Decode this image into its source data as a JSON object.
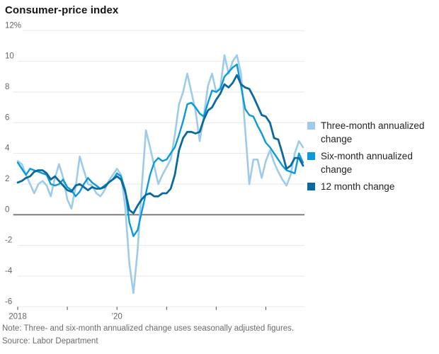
{
  "title": "Consumer-price index",
  "note": "Note: Three- and six-month annualized change uses seasonally adjusted figures.",
  "source": "Source: Labor Department",
  "colors": {
    "three_month": "#9dcbe9",
    "six_month": "#0b99db",
    "twelve_month": "#0a6a9f",
    "gridline": "#e7e7e7",
    "zero_line": "#767676",
    "axis_line": "#d8d8d8",
    "tick": "#4a4a4a",
    "axis_text": "#666666"
  },
  "chart_data": {
    "type": "line",
    "title": "Consumer-price index",
    "frequency": "monthly",
    "x_start": "2018-01",
    "x_end": "2023-10",
    "ylim": [
      -6,
      12
    ],
    "grid": "horizontal",
    "legend_position": "right",
    "y_ticks": [
      12,
      10,
      8,
      6,
      4,
      2,
      0,
      -2,
      -4,
      -6
    ],
    "y_tick_labels": [
      "12%",
      "10",
      "8",
      "6",
      "4",
      "2",
      "0",
      "-2",
      "-4",
      "-6"
    ],
    "x_ticks": [
      {
        "label": "2018",
        "month_index": 0
      },
      {
        "label": "",
        "month_index": 12
      },
      {
        "label": "’20",
        "month_index": 24
      },
      {
        "label": "",
        "month_index": 36
      },
      {
        "label": "",
        "month_index": 48
      },
      {
        "label": "",
        "month_index": 60
      }
    ],
    "series": [
      {
        "name": "Three-month annualized change",
        "color": "#9dcbe9",
        "values": [
          3.5,
          3.3,
          2.6,
          2.0,
          1.4,
          2.0,
          2.2,
          1.9,
          1.2,
          2.4,
          3.3,
          2.4,
          1.0,
          0.4,
          1.8,
          3.8,
          2.9,
          2.0,
          1.9,
          1.4,
          1.2,
          1.6,
          2.2,
          2.6,
          3.0,
          2.6,
          0.5,
          -3.2,
          -5.1,
          -2.3,
          1.8,
          5.5,
          4.4,
          3.2,
          2.0,
          2.6,
          3.1,
          3.6,
          5.2,
          7.2,
          8.0,
          9.2,
          8.0,
          6.8,
          4.8,
          6.4,
          8.4,
          9.2,
          8.0,
          8.3,
          10.4,
          9.2,
          10.0,
          10.4,
          9.2,
          5.6,
          2.0,
          3.6,
          3.6,
          2.4,
          3.5,
          4.2,
          3.4,
          2.8,
          2.3,
          1.9,
          2.6,
          4.0,
          4.8,
          4.4
        ]
      },
      {
        "name": "Six-month annualized change",
        "color": "#0b99db",
        "values": [
          3.4,
          3.0,
          2.6,
          3.0,
          2.9,
          2.8,
          2.7,
          2.6,
          2.0,
          1.9,
          2.0,
          2.3,
          1.8,
          1.6,
          1.2,
          1.5,
          2.0,
          2.4,
          2.1,
          1.9,
          1.7,
          1.9,
          2.1,
          2.3,
          2.7,
          2.5,
          1.6,
          -0.5,
          -1.4,
          -1.0,
          0.2,
          1.4,
          2.6,
          3.4,
          3.7,
          3.5,
          3.6,
          4.0,
          4.4,
          5.2,
          6.1,
          7.2,
          7.3,
          7.0,
          6.6,
          6.4,
          7.3,
          8.1,
          8.0,
          8.2,
          9.0,
          9.3,
          9.6,
          9.8,
          8.4,
          6.9,
          6.5,
          6.4,
          5.8,
          5.3,
          4.7,
          4.4,
          4.0,
          3.6,
          3.2,
          2.9,
          2.8,
          2.7,
          4.0,
          3.4
        ]
      },
      {
        "name": "12 month change",
        "color": "#0a6a9f",
        "values": [
          2.1,
          2.2,
          2.4,
          2.5,
          2.8,
          2.9,
          2.9,
          2.7,
          2.3,
          2.5,
          2.2,
          1.9,
          1.6,
          1.5,
          1.9,
          2.0,
          1.8,
          1.6,
          1.8,
          1.7,
          1.7,
          1.8,
          2.1,
          2.3,
          2.5,
          2.3,
          1.5,
          0.3,
          0.1,
          0.6,
          1.0,
          1.3,
          1.4,
          1.2,
          1.2,
          1.4,
          1.4,
          1.7,
          2.6,
          4.2,
          5.0,
          5.4,
          5.4,
          5.3,
          5.4,
          6.2,
          6.8,
          7.0,
          7.5,
          7.9,
          8.5,
          8.3,
          8.6,
          9.1,
          8.5,
          8.3,
          8.2,
          7.7,
          7.1,
          6.5,
          6.4,
          6.0,
          5.0,
          4.9,
          4.0,
          3.0,
          3.2,
          3.7,
          3.7,
          3.2
        ]
      }
    ]
  }
}
